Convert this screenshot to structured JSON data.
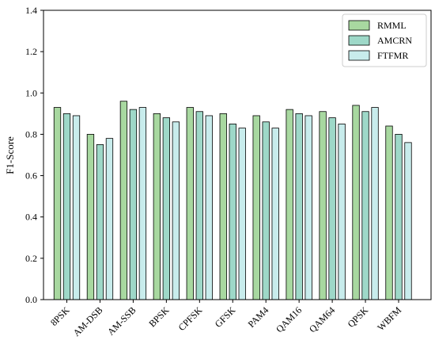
{
  "chart_data": {
    "type": "bar",
    "categories": [
      "8PSK",
      "AM-DSB",
      "AM-SSB",
      "BPSK",
      "CPFSK",
      "GFSK",
      "PAM4",
      "QAM16",
      "QAM64",
      "QPSK",
      "WBFM"
    ],
    "series": [
      {
        "name": "RMML",
        "color": "#a8d8a0",
        "values": [
          0.93,
          0.8,
          0.96,
          0.9,
          0.93,
          0.9,
          0.89,
          0.92,
          0.91,
          0.94,
          0.84
        ]
      },
      {
        "name": "AMCRN",
        "color": "#9ed8c8",
        "values": [
          0.9,
          0.75,
          0.92,
          0.88,
          0.91,
          0.85,
          0.86,
          0.9,
          0.88,
          0.91,
          0.8
        ]
      },
      {
        "name": "FTFMR",
        "color": "#c8ecec",
        "values": [
          0.89,
          0.78,
          0.93,
          0.86,
          0.89,
          0.83,
          0.83,
          0.89,
          0.85,
          0.93,
          0.76
        ]
      }
    ],
    "xlabel": "",
    "ylabel": "F1-Score",
    "ylim": [
      0.0,
      1.4
    ],
    "yticks": [
      "0.0",
      "0.2",
      "0.4",
      "0.6",
      "0.8",
      "1.0",
      "1.2",
      "1.4"
    ],
    "grid": false,
    "legend_position": "top-right",
    "xtick_rotation": "rotated"
  }
}
